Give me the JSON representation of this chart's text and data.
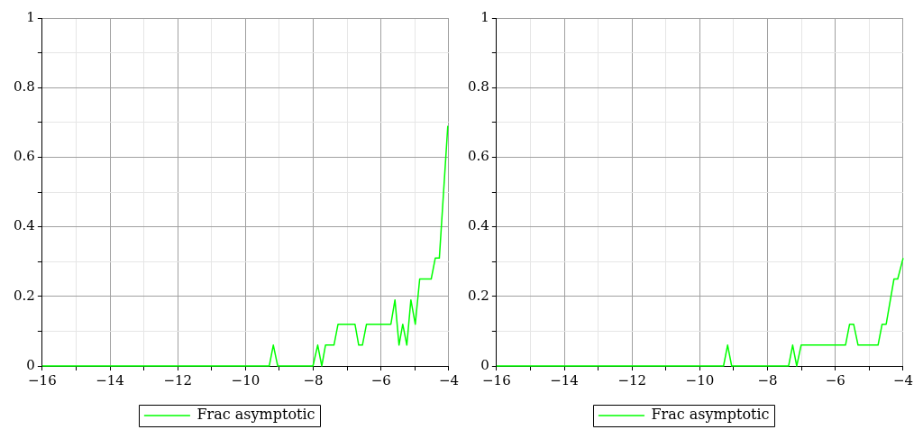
{
  "chart_data": [
    {
      "type": "line",
      "x": [
        -16,
        -9.3,
        -9.18,
        -9.05,
        -8.01,
        -7.87,
        -7.75,
        -7.64,
        -7.39,
        -7.27,
        -6.77,
        -6.66,
        -6.55,
        -6.43,
        -5.71,
        -5.59,
        -5.47,
        -5.36,
        -5.24,
        -5.12,
        -4.99,
        -4.86,
        -4.52,
        -4.4,
        -4.28,
        -4.03
      ],
      "series": [
        {
          "name": "Frac asymptotic",
          "color": "#00ff00",
          "values": [
            0,
            0,
            0.06,
            0,
            0,
            0.06,
            0,
            0.06,
            0.06,
            0.12,
            0.12,
            0.06,
            0.06,
            0.12,
            0.12,
            0.19,
            0.06,
            0.12,
            0.06,
            0.19,
            0.12,
            0.25,
            0.25,
            0.31,
            0.31,
            0.69
          ]
        }
      ],
      "xlim": [
        -16,
        -4
      ],
      "xticks": [
        {
          "value": -16,
          "label": "−16"
        },
        {
          "value": -15,
          "label": null
        },
        {
          "value": -14,
          "label": "−14"
        },
        {
          "value": -13,
          "label": null
        },
        {
          "value": -12,
          "label": "−12"
        },
        {
          "value": -11,
          "label": null
        },
        {
          "value": -10,
          "label": "−10"
        },
        {
          "value": -9,
          "label": null
        },
        {
          "value": -8,
          "label": "−8"
        },
        {
          "value": -7,
          "label": null
        },
        {
          "value": -6,
          "label": "−6"
        },
        {
          "value": -5,
          "label": null
        },
        {
          "value": -4,
          "label": "−4"
        }
      ],
      "ylim": [
        0,
        1
      ],
      "yticks": [
        0,
        {
          "value": 0.1,
          "label": null
        },
        0.2,
        {
          "value": 0.3,
          "label": null
        },
        0.4,
        {
          "value": 0.5,
          "label": null
        },
        0.6,
        {
          "value": 0.7,
          "label": null
        },
        0.8,
        {
          "value": 0.9,
          "label": null
        },
        1
      ],
      "grid": true,
      "legend": "bottom",
      "marker": "none",
      "line_style": "solid"
    },
    {
      "type": "line",
      "x": [
        -16,
        -9.3,
        -9.18,
        -9.06,
        -7.38,
        -7.26,
        -7.14,
        -7.01,
        -5.7,
        -5.58,
        -5.46,
        -5.33,
        -4.74,
        -4.62,
        -4.5,
        -4.27,
        -4.16,
        -4
      ],
      "series": [
        {
          "name": "Frac asymptotic",
          "color": "#00ff00",
          "values": [
            0,
            0,
            0.06,
            0,
            0,
            0.06,
            0,
            0.06,
            0.06,
            0.12,
            0.12,
            0.06,
            0.06,
            0.12,
            0.12,
            0.25,
            0.25,
            0.31
          ]
        }
      ],
      "xlim": [
        -16,
        -4
      ],
      "xticks": [
        {
          "value": -16,
          "label": "−16"
        },
        {
          "value": -15,
          "label": null
        },
        {
          "value": -14,
          "label": "−14"
        },
        {
          "value": -13,
          "label": null
        },
        {
          "value": -12,
          "label": "−12"
        },
        {
          "value": -11,
          "label": null
        },
        {
          "value": -10,
          "label": "−10"
        },
        {
          "value": -9,
          "label": null
        },
        {
          "value": -8,
          "label": "−8"
        },
        {
          "value": -7,
          "label": null
        },
        {
          "value": -6,
          "label": "−6"
        },
        {
          "value": -5,
          "label": null
        },
        {
          "value": -4,
          "label": "−4"
        }
      ],
      "ylim": [
        0,
        1
      ],
      "yticks": [
        0,
        {
          "value": 0.1,
          "label": null
        },
        0.2,
        {
          "value": 0.3,
          "label": null
        },
        0.4,
        {
          "value": 0.5,
          "label": null
        },
        0.6,
        {
          "value": 0.7,
          "label": null
        },
        0.8,
        {
          "value": 0.9,
          "label": null
        },
        1
      ],
      "grid": true,
      "legend": "bottom",
      "marker": "none",
      "line_style": "solid"
    }
  ]
}
